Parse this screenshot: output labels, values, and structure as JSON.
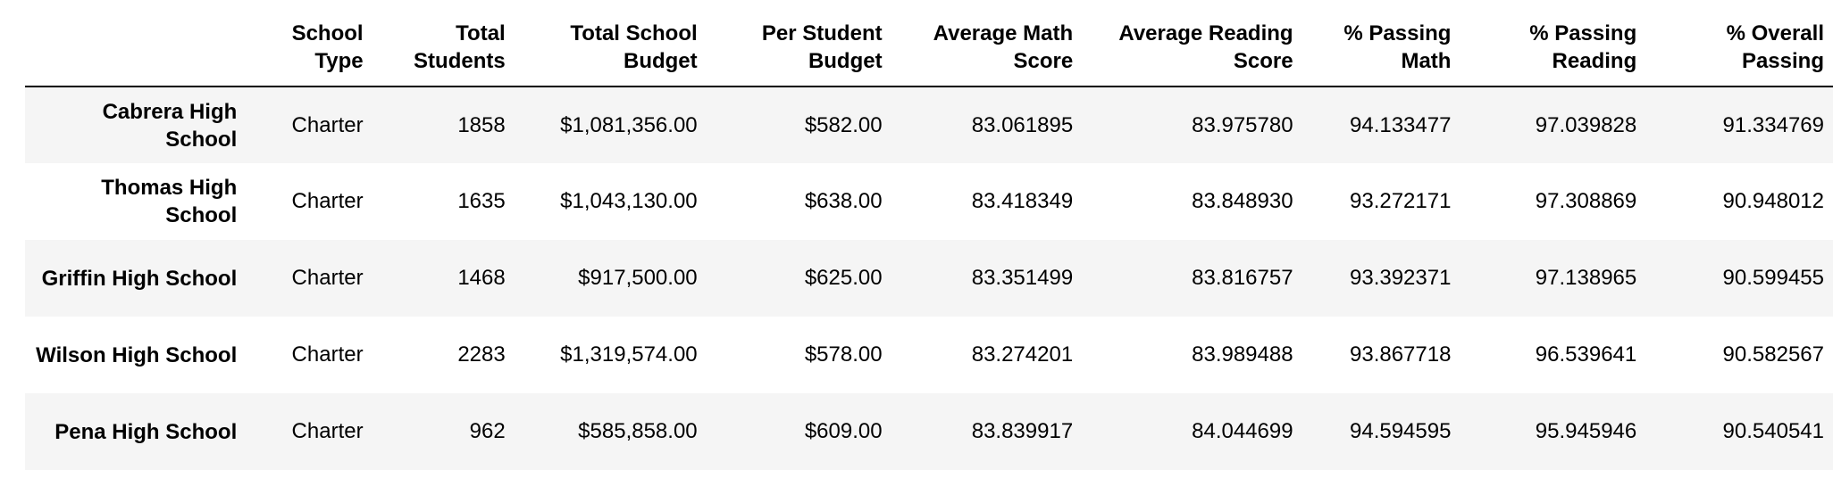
{
  "table": {
    "headers": [
      "",
      "School Type",
      "Total Students",
      "Total School Budget",
      "Per Student Budget",
      "Average Math Score",
      "Average Reading Score",
      "% Passing Math",
      "% Passing Reading",
      "% Overall Passing"
    ],
    "rows": [
      {
        "name": "Cabrera High School",
        "cells": [
          "Charter",
          "1858",
          "$1,081,356.00",
          "$582.00",
          "83.061895",
          "83.975780",
          "94.133477",
          "97.039828",
          "91.334769"
        ]
      },
      {
        "name": "Thomas High School",
        "cells": [
          "Charter",
          "1635",
          "$1,043,130.00",
          "$638.00",
          "83.418349",
          "83.848930",
          "93.272171",
          "97.308869",
          "90.948012"
        ]
      },
      {
        "name": "Griffin High School",
        "cells": [
          "Charter",
          "1468",
          "$917,500.00",
          "$625.00",
          "83.351499",
          "83.816757",
          "93.392371",
          "97.138965",
          "90.599455"
        ]
      },
      {
        "name": "Wilson High School",
        "cells": [
          "Charter",
          "2283",
          "$1,319,574.00",
          "$578.00",
          "83.274201",
          "83.989488",
          "93.867718",
          "96.539641",
          "90.582567"
        ]
      },
      {
        "name": "Pena High School",
        "cells": [
          "Charter",
          "962",
          "$585,858.00",
          "$609.00",
          "83.839917",
          "84.044699",
          "94.594595",
          "95.945946",
          "90.540541"
        ]
      }
    ]
  }
}
